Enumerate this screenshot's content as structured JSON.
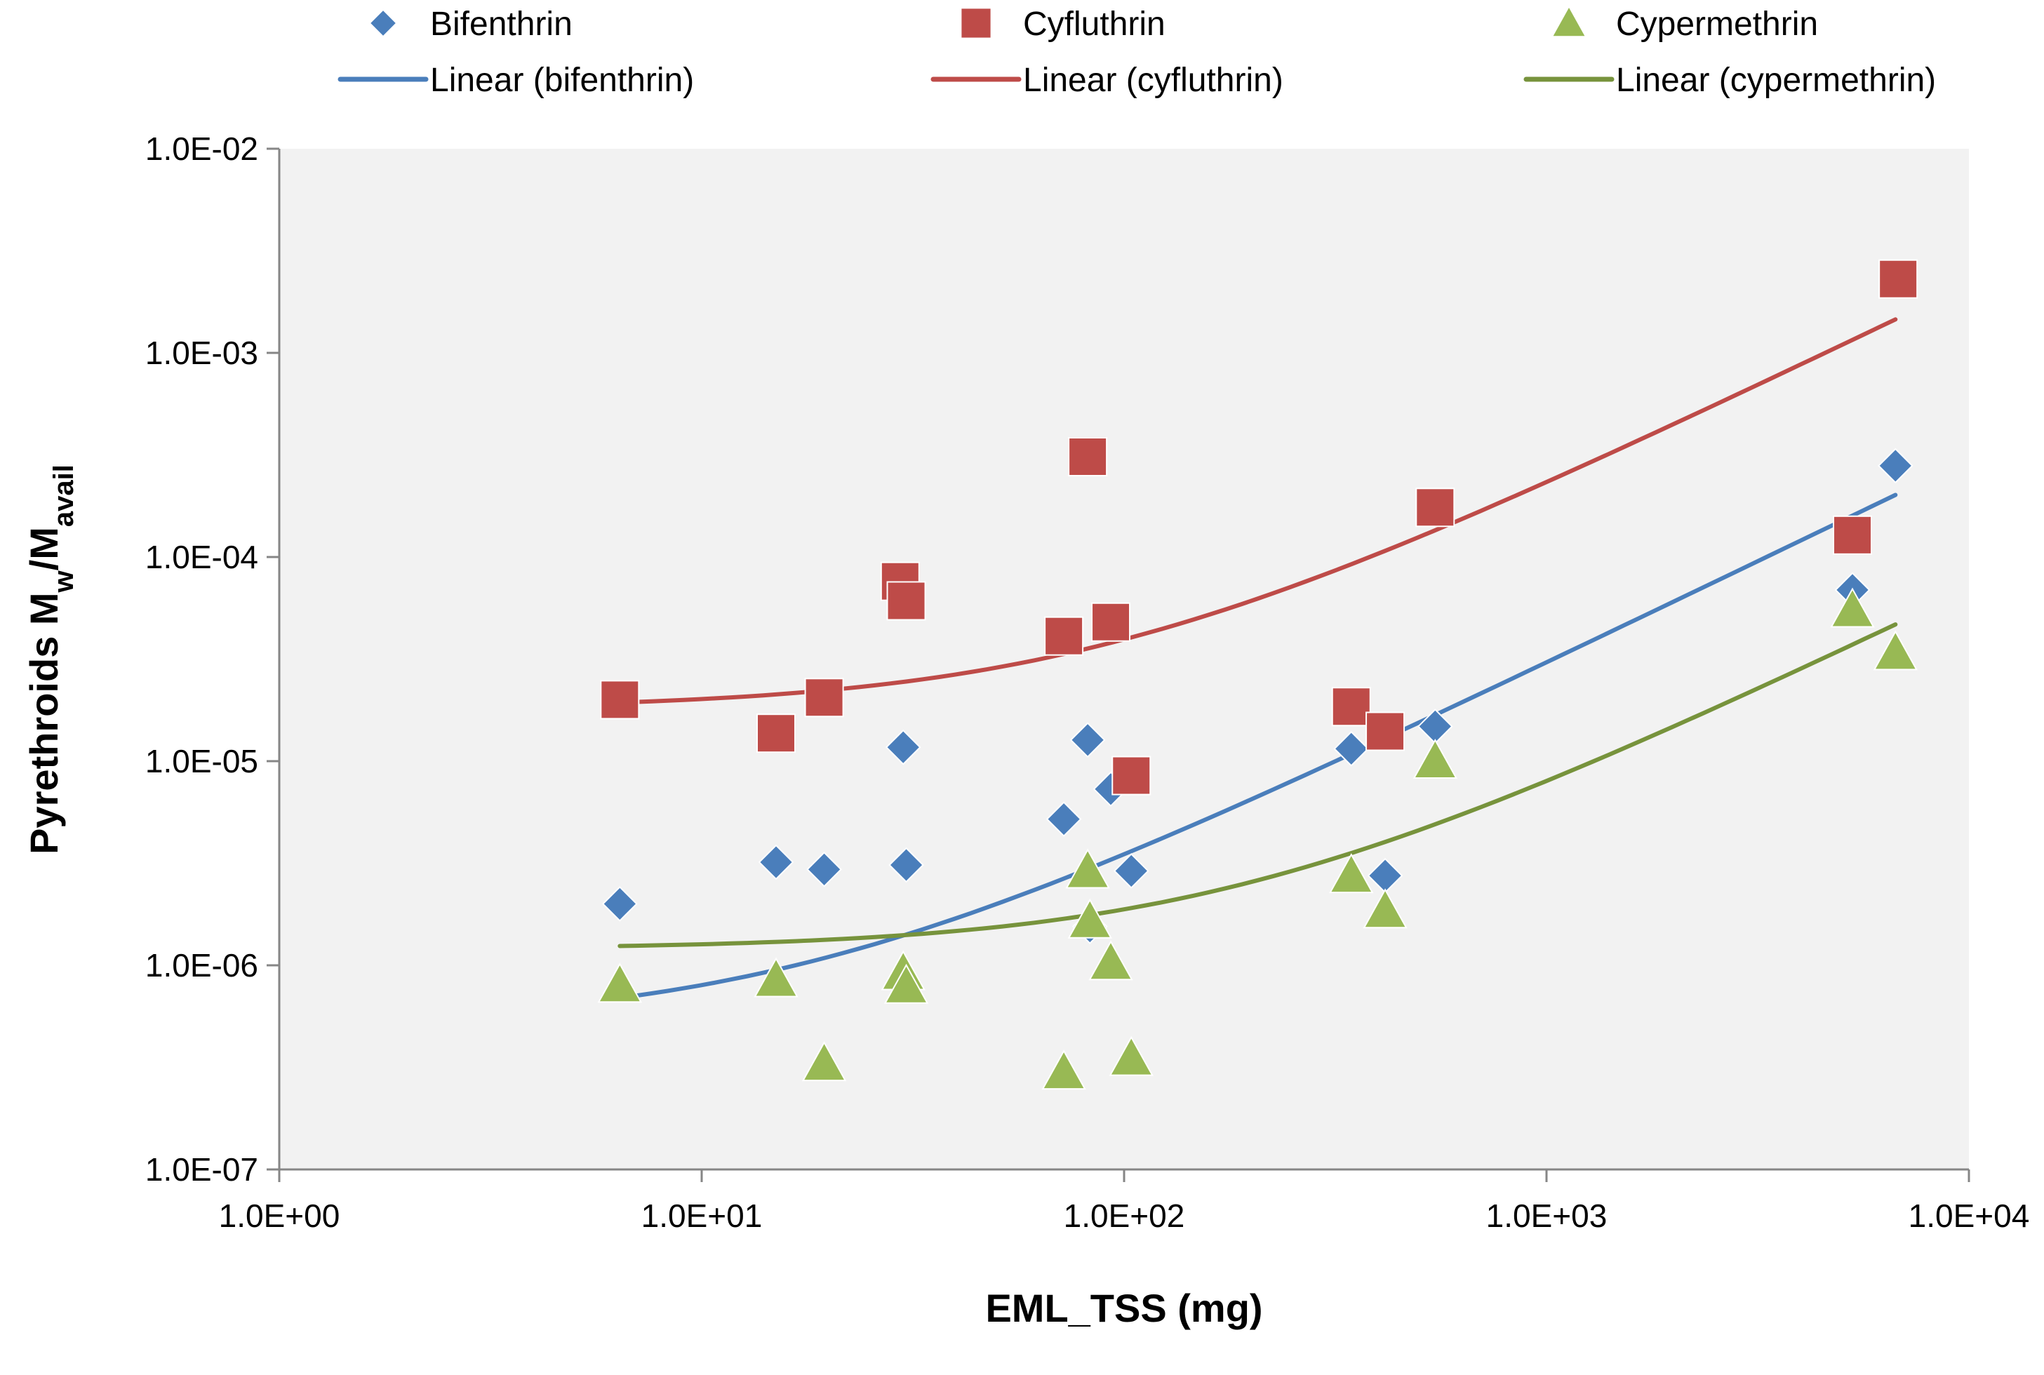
{
  "chart_data": {
    "type": "scatter",
    "xscale": "log",
    "yscale": "log",
    "xlim": [
      1,
      10000
    ],
    "ylim": [
      1e-07,
      0.01
    ],
    "xlabel": "EML_TSS (mg)",
    "ylabel_main": "Pyrethroids M",
    "ylabel_sub1": "w",
    "ylabel_mid": "/M",
    "ylabel_sub2": "avail",
    "legend_position": "top",
    "grid": false,
    "x_ticks": [
      {
        "value": 1,
        "label": "1.0E+00"
      },
      {
        "value": 10,
        "label": "1.0E+01"
      },
      {
        "value": 100,
        "label": "1.0E+02"
      },
      {
        "value": 1000,
        "label": "1.0E+03"
      },
      {
        "value": 10000,
        "label": "1.0E+04"
      }
    ],
    "y_ticks": [
      {
        "value": 1e-07,
        "label": "1.0E-07"
      },
      {
        "value": 1e-06,
        "label": "1.0E-06"
      },
      {
        "value": 1e-05,
        "label": "1.0E-05"
      },
      {
        "value": 0.0001,
        "label": "1.0E-04"
      },
      {
        "value": 0.001,
        "label": "1.0E-03"
      },
      {
        "value": 0.01,
        "label": "1.0E-02"
      }
    ],
    "series": [
      {
        "name": "Bifenthrin",
        "marker": "diamond",
        "color": "#4a7ebb",
        "points": [
          [
            6.4,
            2e-06
          ],
          [
            15,
            3.2e-06
          ],
          [
            19.5,
            2.95e-06
          ],
          [
            30,
            1.17e-05
          ],
          [
            30.5,
            3.1e-06
          ],
          [
            72,
            5.2e-06
          ],
          [
            82,
            1.27e-05
          ],
          [
            93,
            7.3e-06
          ],
          [
            104,
            2.9e-06
          ],
          [
            83,
            1.55e-06
          ],
          [
            345,
            1.15e-05
          ],
          [
            415,
            2.75e-06
          ],
          [
            545,
            1.48e-05
          ],
          [
            5300,
            6.9e-05
          ],
          [
            6700,
            0.00028
          ]
        ]
      },
      {
        "name": "Cyfluthrin",
        "marker": "square",
        "color": "#be4b48",
        "points": [
          [
            6.4,
            2e-05
          ],
          [
            15,
            1.37e-05
          ],
          [
            19.5,
            2.05e-05
          ],
          [
            29.5,
            7.6e-05
          ],
          [
            30.5,
            6.1e-05
          ],
          [
            72,
            4.1e-05
          ],
          [
            82,
            0.00031
          ],
          [
            93,
            4.8e-05
          ],
          [
            104,
            8.5e-06
          ],
          [
            345,
            1.85e-05
          ],
          [
            415,
            1.4e-05
          ],
          [
            545,
            0.000175
          ],
          [
            5300,
            0.000128
          ],
          [
            6800,
            0.0023
          ]
        ]
      },
      {
        "name": "Cypermethrin",
        "marker": "triangle",
        "color": "#98b954",
        "points": [
          [
            6.4,
            8e-07
          ],
          [
            15,
            8.5e-07
          ],
          [
            19.5,
            3.3e-07
          ],
          [
            30,
            9.2e-07
          ],
          [
            30.5,
            7.9e-07
          ],
          [
            72,
            3e-07
          ],
          [
            82,
            2.9e-06
          ],
          [
            83,
            1.65e-06
          ],
          [
            93,
            1.03e-06
          ],
          [
            104,
            3.5e-07
          ],
          [
            345,
            2.75e-06
          ],
          [
            415,
            1.85e-06
          ],
          [
            545,
            1e-05
          ],
          [
            5300,
            5.5e-05
          ],
          [
            6700,
            3.4e-05
          ]
        ]
      }
    ],
    "trendlines": [
      {
        "name": "Linear (bifenthrin)",
        "color": "#4a7ebb",
        "intercept": 5e-07,
        "slope": 3e-08,
        "x_range": [
          6.4,
          6700
        ]
      },
      {
        "name": "Linear (cyfluthrin)",
        "color": "#be4b48",
        "intercept": 1.8e-05,
        "slope": 2.15e-07,
        "x_range": [
          6.4,
          6700
        ]
      },
      {
        "name": "Linear (cypermethrin)",
        "color": "#77933c",
        "intercept": 1.2e-06,
        "slope": 6.8e-09,
        "x_range": [
          6.4,
          6700
        ]
      }
    ],
    "legend": [
      {
        "label": "Bifenthrin",
        "kind": "diamond",
        "color": "#4a7ebb"
      },
      {
        "label": "Cyfluthrin",
        "kind": "square",
        "color": "#be4b48"
      },
      {
        "label": "Cypermethrin",
        "kind": "triangle",
        "color": "#98b954"
      },
      {
        "label": "Linear (bifenthrin)",
        "kind": "line",
        "color": "#4a7ebb"
      },
      {
        "label": "Linear (cyfluthrin)",
        "kind": "line",
        "color": "#be4b48"
      },
      {
        "label": "Linear (cypermethrin)",
        "kind": "line",
        "color": "#77933c"
      }
    ]
  }
}
